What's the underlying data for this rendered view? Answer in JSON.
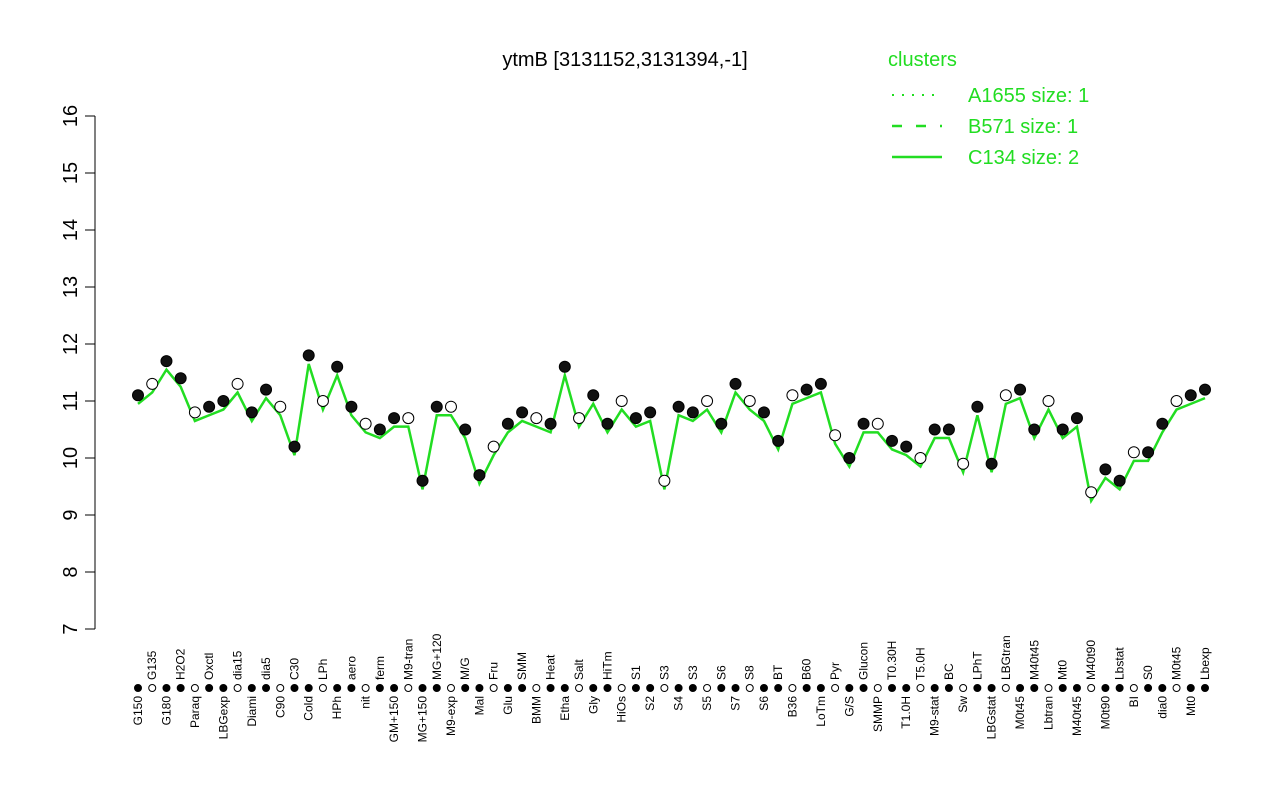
{
  "chart_data": {
    "type": "line",
    "title": "ytmB [3131152,3131394,-1]",
    "xlabel": "",
    "ylabel": "",
    "ylim": [
      7,
      16
    ],
    "yticks": [
      7,
      8,
      9,
      10,
      11,
      12,
      13,
      14,
      15,
      16
    ],
    "grid": false,
    "legend": {
      "title": "clusters",
      "placement": "top-right",
      "entries": [
        {
          "label": "A1655 size: 1",
          "style": "dotted"
        },
        {
          "label": "B571 size: 1",
          "style": "dashed"
        },
        {
          "label": "C134 size: 2",
          "style": "solid"
        }
      ]
    },
    "colors": {
      "line": "#22dd22",
      "legend": "#22dd22",
      "point_fill_dark": "#111111",
      "point_fill_light": "#ffffff"
    },
    "categories": [
      "G150",
      "G135",
      "G180",
      "H2O2",
      "Paraq",
      "Oxctl",
      "LBGexp",
      "dia15",
      "Diami",
      "dia5",
      "C90",
      "C30",
      "Cold",
      "LPh",
      "HPh",
      "aero",
      "nit",
      "ferm",
      "GM+150",
      "M9-tran",
      "MG+150",
      "MG+120",
      "M9-exp",
      "M/G",
      "Mal",
      "Fru",
      "Glu",
      "SMM",
      "BMM",
      "Heat",
      "Etha",
      "Salt",
      "Gly",
      "HiTm",
      "HiOs",
      "S1",
      "S2",
      "S3",
      "S4",
      "S3",
      "S5",
      "S6",
      "S7",
      "S8",
      "S6",
      "BT",
      "B36",
      "B60",
      "LoTm",
      "Pyr",
      "G/S",
      "Glucon",
      "SMMP",
      "T0.30H",
      "T1.0H",
      "T5.0H",
      "M9-stat",
      "BC",
      "Sw",
      "LPhT",
      "LBGstat",
      "LBGtran",
      "M0t45",
      "M40t45",
      "Lbtran",
      "Mt0",
      "M40t45",
      "M40t90",
      "M0t90",
      "Lbstat",
      "BI",
      "S0",
      "dia0",
      "M0t45",
      "Mt0",
      "Lbexp"
    ],
    "values": [
      11.1,
      11.3,
      11.7,
      11.4,
      10.8,
      10.9,
      11.0,
      11.3,
      10.8,
      11.2,
      10.9,
      10.2,
      11.8,
      11.0,
      11.6,
      10.9,
      10.6,
      10.5,
      10.7,
      10.7,
      9.6,
      10.9,
      10.9,
      10.5,
      9.7,
      10.2,
      10.6,
      10.8,
      10.7,
      10.6,
      11.6,
      10.7,
      11.1,
      10.6,
      11.0,
      10.7,
      10.8,
      9.6,
      10.9,
      10.8,
      11.0,
      10.6,
      11.3,
      11.0,
      10.8,
      10.3,
      11.1,
      11.2,
      11.3,
      10.4,
      10.0,
      10.6,
      10.6,
      10.3,
      10.2,
      10.0,
      10.5,
      10.5,
      9.9,
      10.9,
      9.9,
      11.1,
      11.2,
      10.5,
      11.0,
      10.5,
      10.7,
      9.4,
      9.8,
      9.6,
      10.1,
      10.1,
      10.6,
      11.0,
      11.1,
      11.2
    ]
  }
}
